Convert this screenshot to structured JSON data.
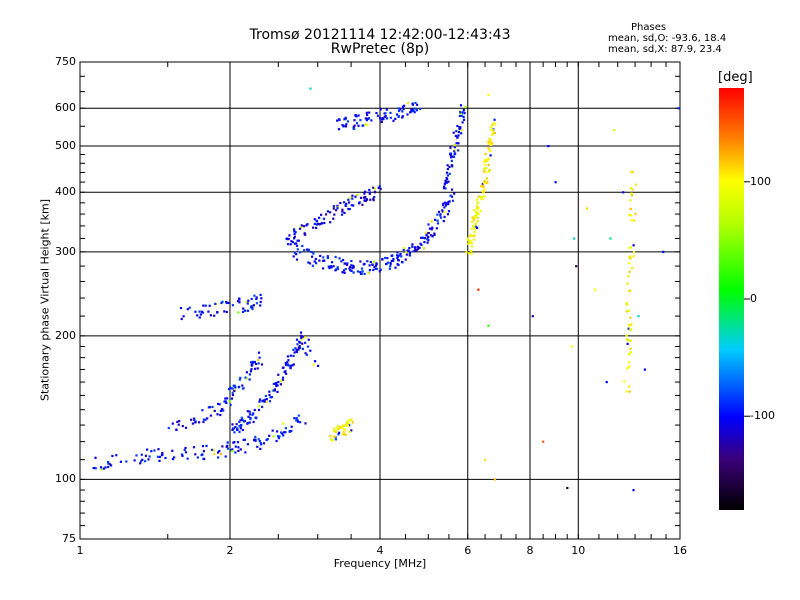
{
  "header": {
    "title_line1": "Tromsø 20121114 12:42:00-12:43:43",
    "title_line2": "RwPretec (8p)",
    "phases_heading": "Phases",
    "phases_line_o": "mean, sd,O: -93.6, 18.4",
    "phases_line_x": "mean, sd,X: 87.9, 23.4"
  },
  "colorbar": {
    "label": "[deg]",
    "tick_labels": [
      "100",
      "0",
      "-100"
    ],
    "tick_values": [
      100,
      0,
      -100
    ],
    "range": [
      -180,
      180
    ]
  },
  "chart_data": {
    "type": "scatter",
    "title": "Tromsø 20121114 12:42:00-12:43:43",
    "subtitle": "RwPretec (8p)",
    "xlabel": "Frequency [MHz]",
    "ylabel": "Stationary phase Virtual Height [km]",
    "xscale": "log",
    "yscale": "log",
    "xlim": [
      1,
      16
    ],
    "ylim": [
      75,
      750
    ],
    "xticks": [
      1,
      2,
      4,
      6,
      8,
      10,
      16
    ],
    "xtick_labels": [
      "1",
      "2",
      "4",
      "6",
      "8",
      "10",
      "16"
    ],
    "yticks": [
      75,
      100,
      200,
      300,
      400,
      500,
      600,
      750
    ],
    "ytick_labels": [
      "75",
      "100",
      "200",
      "300",
      "400",
      "500",
      "600",
      "750"
    ],
    "grid": true,
    "color_encoding": "phase in degrees",
    "traces": [
      {
        "x": [
          1.05,
          1.2,
          1.4,
          1.6,
          1.8,
          2.0,
          2.2,
          2.4,
          2.6,
          2.8
        ],
        "y": [
          107,
          110,
          112,
          113,
          114,
          116,
          118,
          122,
          128,
          135
        ],
        "phase": -100
      },
      {
        "x": [
          2.0,
          2.1,
          2.2,
          2.3,
          2.4,
          2.5,
          2.6,
          2.7,
          2.8,
          3.0
        ],
        "y": [
          125,
          130,
          135,
          142,
          150,
          160,
          172,
          185,
          198,
          175
        ],
        "phase": -100
      },
      {
        "x": [
          1.5,
          1.7,
          1.9,
          2.0,
          2.1,
          2.2,
          2.3
        ],
        "y": [
          130,
          134,
          140,
          150,
          158,
          170,
          180
        ],
        "phase": -100
      },
      {
        "x": [
          3.2,
          3.3,
          3.4,
          3.5
        ],
        "y": [
          123,
          126,
          128,
          130
        ],
        "phase": 100
      },
      {
        "x": [
          1.6,
          1.8,
          2.0,
          2.2,
          2.3
        ],
        "y": [
          222,
          226,
          230,
          234,
          238
        ],
        "phase": -100
      },
      {
        "x": [
          2.6,
          2.8,
          3.0,
          3.2,
          3.4,
          3.6,
          3.8,
          4.0,
          4.2,
          4.4,
          4.6,
          4.8,
          5.0,
          5.2,
          5.4,
          5.6
        ],
        "y": [
          310,
          296,
          288,
          284,
          280,
          278,
          279,
          282,
          286,
          292,
          300,
          310,
          325,
          345,
          370,
          400
        ],
        "phase": -100
      },
      {
        "x": [
          2.6,
          2.8,
          3.0,
          3.2,
          3.4,
          3.6,
          3.8,
          4.0
        ],
        "y": [
          320,
          330,
          345,
          360,
          375,
          385,
          395,
          405
        ],
        "phase": -110
      },
      {
        "x": [
          5.4,
          5.5,
          5.6,
          5.7,
          5.8,
          5.9
        ],
        "y": [
          400,
          440,
          480,
          520,
          560,
          600
        ],
        "phase": -100
      },
      {
        "x": [
          3.3,
          3.5,
          3.7,
          4.0,
          4.3,
          4.6,
          4.8
        ],
        "y": [
          555,
          560,
          565,
          575,
          585,
          600,
          610
        ],
        "phase": -100
      },
      {
        "x": [
          6.0,
          6.1,
          6.2,
          6.3,
          6.4,
          6.5,
          6.6,
          6.7,
          6.8
        ],
        "y": [
          300,
          320,
          345,
          370,
          400,
          430,
          470,
          520,
          560
        ],
        "phase": 100
      },
      {
        "x": [
          12.5,
          12.6,
          12.7,
          12.8,
          12.9
        ],
        "y": [
          150,
          200,
          250,
          330,
          450
        ],
        "phase": 100
      }
    ],
    "scattered_points": [
      {
        "x": 2.9,
        "y": 660,
        "phase": -30
      },
      {
        "x": 6.6,
        "y": 640,
        "phase": 100
      },
      {
        "x": 6.3,
        "y": 250,
        "phase": 170
      },
      {
        "x": 6.6,
        "y": 210,
        "phase": 20
      },
      {
        "x": 6.5,
        "y": 110,
        "phase": 110
      },
      {
        "x": 6.8,
        "y": 100,
        "phase": 120
      },
      {
        "x": 8.1,
        "y": 220,
        "phase": -120
      },
      {
        "x": 8.5,
        "y": 120,
        "phase": 150
      },
      {
        "x": 8.7,
        "y": 500,
        "phase": -100
      },
      {
        "x": 9.0,
        "y": 420,
        "phase": -100
      },
      {
        "x": 9.5,
        "y": 96,
        "phase": -160
      },
      {
        "x": 9.7,
        "y": 190,
        "phase": 100
      },
      {
        "x": 9.8,
        "y": 320,
        "phase": -30
      },
      {
        "x": 9.9,
        "y": 280,
        "phase": -150
      },
      {
        "x": 10.4,
        "y": 370,
        "phase": 110
      },
      {
        "x": 10.8,
        "y": 250,
        "phase": 100
      },
      {
        "x": 11.4,
        "y": 160,
        "phase": -100
      },
      {
        "x": 11.6,
        "y": 320,
        "phase": -20
      },
      {
        "x": 11.8,
        "y": 540,
        "phase": 80
      },
      {
        "x": 12.3,
        "y": 400,
        "phase": -110
      },
      {
        "x": 12.9,
        "y": 95,
        "phase": -100
      },
      {
        "x": 13.2,
        "y": 220,
        "phase": -30
      },
      {
        "x": 13.6,
        "y": 170,
        "phase": -100
      },
      {
        "x": 14.8,
        "y": 300,
        "phase": -100
      },
      {
        "x": 15.9,
        "y": 600,
        "phase": -90
      }
    ]
  }
}
